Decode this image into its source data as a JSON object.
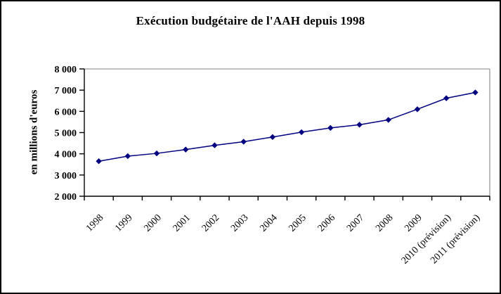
{
  "window": {
    "background": "#ffffff",
    "frame_border_color": "#000000"
  },
  "chart_data": {
    "type": "line",
    "title": "Exécution budgétaire de l'AAH depuis 1998",
    "ylabel": "en millions d'euros",
    "xlabel": "",
    "categories": [
      "1998",
      "1999",
      "2000",
      "2001",
      "2002",
      "2003",
      "2004",
      "2005",
      "2006",
      "2007",
      "2008",
      "2009",
      "2010 (prévision)",
      "2011 (prévision)"
    ],
    "values": [
      3650,
      3890,
      4020,
      4200,
      4400,
      4570,
      4790,
      5020,
      5220,
      5370,
      5600,
      6100,
      6620,
      6890
    ],
    "ylim": [
      2000,
      8000
    ],
    "ytick_step": 1000,
    "ytick_labels": [
      "2 000",
      "3 000",
      "4 000",
      "5 000",
      "6 000",
      "7 000",
      "8 000"
    ],
    "grid": "off",
    "legend": "none",
    "marker": "diamond",
    "x_label_rotation_deg": 45,
    "colors": {
      "line": "#000080",
      "marker": "#000080",
      "axis": "#000000",
      "plot_border": "#999999",
      "text": "#000000"
    }
  }
}
